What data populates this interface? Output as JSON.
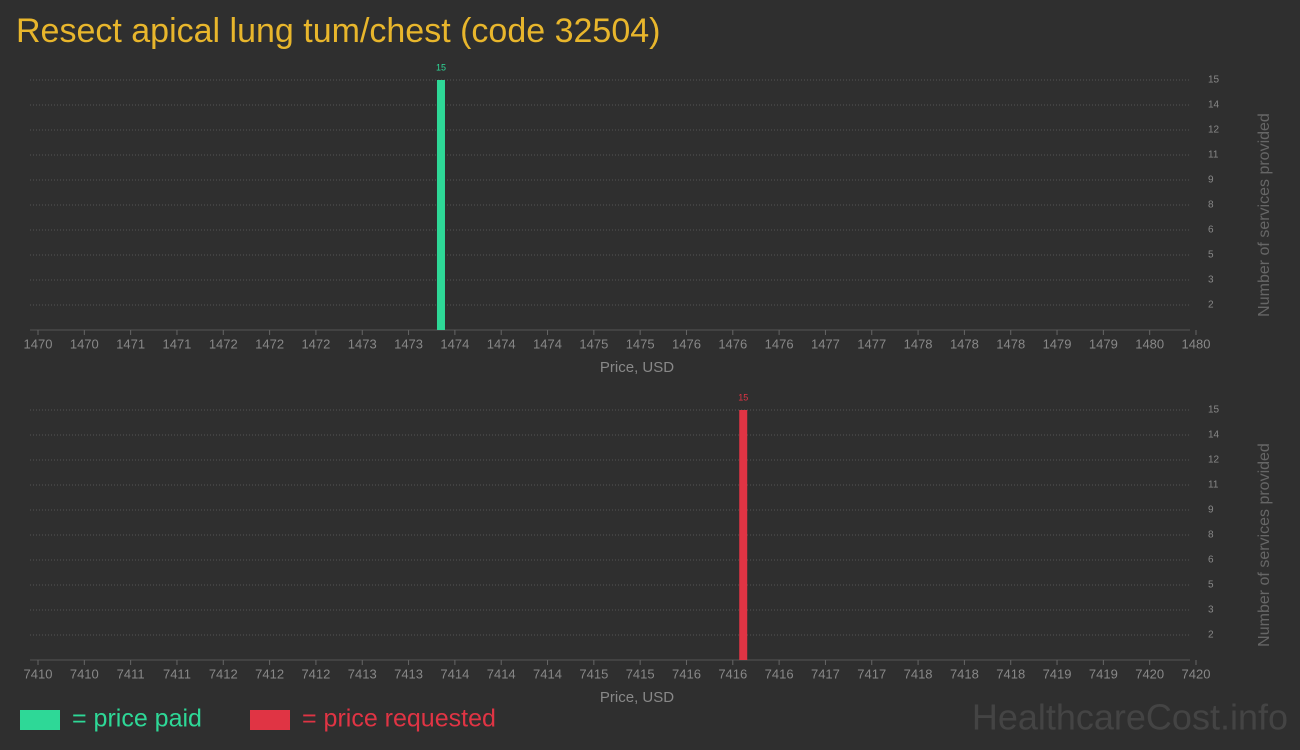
{
  "title": "Resect apical lung tum/chest (code 32504)",
  "watermark": "HealthcareCost.info",
  "chart_data": [
    {
      "type": "bar",
      "x_label": "Price, USD",
      "y_label": "Number of services provided",
      "xlim": [
        1470,
        1480
      ],
      "xticks": [
        {
          "value": 1470,
          "label": "1470"
        },
        {
          "value": 1470.4,
          "label": "1470"
        },
        {
          "value": 1470.8,
          "label": "1471"
        },
        {
          "value": 1471.2,
          "label": "1471"
        },
        {
          "value": 1471.6,
          "label": "1472"
        },
        {
          "value": 1472,
          "label": "1472"
        },
        {
          "value": 1472.4,
          "label": "1472"
        },
        {
          "value": 1472.8,
          "label": "1473"
        },
        {
          "value": 1473.2,
          "label": "1473"
        },
        {
          "value": 1473.6,
          "label": "1474"
        },
        {
          "value": 1474,
          "label": "1474"
        },
        {
          "value": 1474.4,
          "label": "1474"
        },
        {
          "value": 1474.8,
          "label": "1475"
        },
        {
          "value": 1475.2,
          "label": "1475"
        },
        {
          "value": 1475.6,
          "label": "1476"
        },
        {
          "value": 1476,
          "label": "1476"
        },
        {
          "value": 1476.4,
          "label": "1476"
        },
        {
          "value": 1476.8,
          "label": "1477"
        },
        {
          "value": 1477.2,
          "label": "1477"
        },
        {
          "value": 1477.6,
          "label": "1478"
        },
        {
          "value": 1478,
          "label": "1478"
        },
        {
          "value": 1478.4,
          "label": "1478"
        },
        {
          "value": 1478.8,
          "label": "1479"
        },
        {
          "value": 1479.2,
          "label": "1479"
        },
        {
          "value": 1479.6,
          "label": "1480"
        },
        {
          "value": 1480,
          "label": "1480"
        }
      ],
      "ylim": [
        0,
        15
      ],
      "yticks": [
        {
          "value": 1.5,
          "label": "2"
        },
        {
          "value": 3,
          "label": "3"
        },
        {
          "value": 4.5,
          "label": "5"
        },
        {
          "value": 6,
          "label": "6"
        },
        {
          "value": 7.5,
          "label": "8"
        },
        {
          "value": 9,
          "label": "9"
        },
        {
          "value": 10.5,
          "label": "11"
        },
        {
          "value": 12,
          "label": "12"
        },
        {
          "value": 13.5,
          "label": "14"
        },
        {
          "value": 15,
          "label": "15"
        }
      ],
      "grid": true,
      "series": [
        {
          "name": "= price paid",
          "color": "#2ed897",
          "x": [
            1473.48
          ],
          "values": [
            15
          ]
        }
      ]
    },
    {
      "type": "bar",
      "x_label": "Price, USD",
      "y_label": "Number of services provided",
      "xlim": [
        7410,
        7420
      ],
      "xticks": [
        {
          "value": 7410,
          "label": "7410"
        },
        {
          "value": 7410.4,
          "label": "7410"
        },
        {
          "value": 7410.8,
          "label": "7411"
        },
        {
          "value": 7411.2,
          "label": "7411"
        },
        {
          "value": 7411.6,
          "label": "7412"
        },
        {
          "value": 7412,
          "label": "7412"
        },
        {
          "value": 7412.4,
          "label": "7412"
        },
        {
          "value": 7412.8,
          "label": "7413"
        },
        {
          "value": 7413.2,
          "label": "7413"
        },
        {
          "value": 7413.6,
          "label": "7414"
        },
        {
          "value": 7414,
          "label": "7414"
        },
        {
          "value": 7414.4,
          "label": "7414"
        },
        {
          "value": 7414.8,
          "label": "7415"
        },
        {
          "value": 7415.2,
          "label": "7415"
        },
        {
          "value": 7415.6,
          "label": "7416"
        },
        {
          "value": 7416,
          "label": "7416"
        },
        {
          "value": 7416.4,
          "label": "7416"
        },
        {
          "value": 7416.8,
          "label": "7417"
        },
        {
          "value": 7417.2,
          "label": "7417"
        },
        {
          "value": 7417.6,
          "label": "7418"
        },
        {
          "value": 7418,
          "label": "7418"
        },
        {
          "value": 7418.4,
          "label": "7418"
        },
        {
          "value": 7418.8,
          "label": "7419"
        },
        {
          "value": 7419.2,
          "label": "7419"
        },
        {
          "value": 7419.6,
          "label": "7420"
        },
        {
          "value": 7420,
          "label": "7420"
        }
      ],
      "ylim": [
        0,
        15
      ],
      "yticks": [
        {
          "value": 1.5,
          "label": "2"
        },
        {
          "value": 3,
          "label": "3"
        },
        {
          "value": 4.5,
          "label": "5"
        },
        {
          "value": 6,
          "label": "6"
        },
        {
          "value": 7.5,
          "label": "8"
        },
        {
          "value": 9,
          "label": "9"
        },
        {
          "value": 10.5,
          "label": "11"
        },
        {
          "value": 12,
          "label": "12"
        },
        {
          "value": 13.5,
          "label": "14"
        },
        {
          "value": 15,
          "label": "15"
        }
      ],
      "grid": true,
      "series": [
        {
          "name": "= price requested",
          "color": "#e03444",
          "x": [
            7416.09
          ],
          "values": [
            15
          ]
        }
      ]
    }
  ]
}
